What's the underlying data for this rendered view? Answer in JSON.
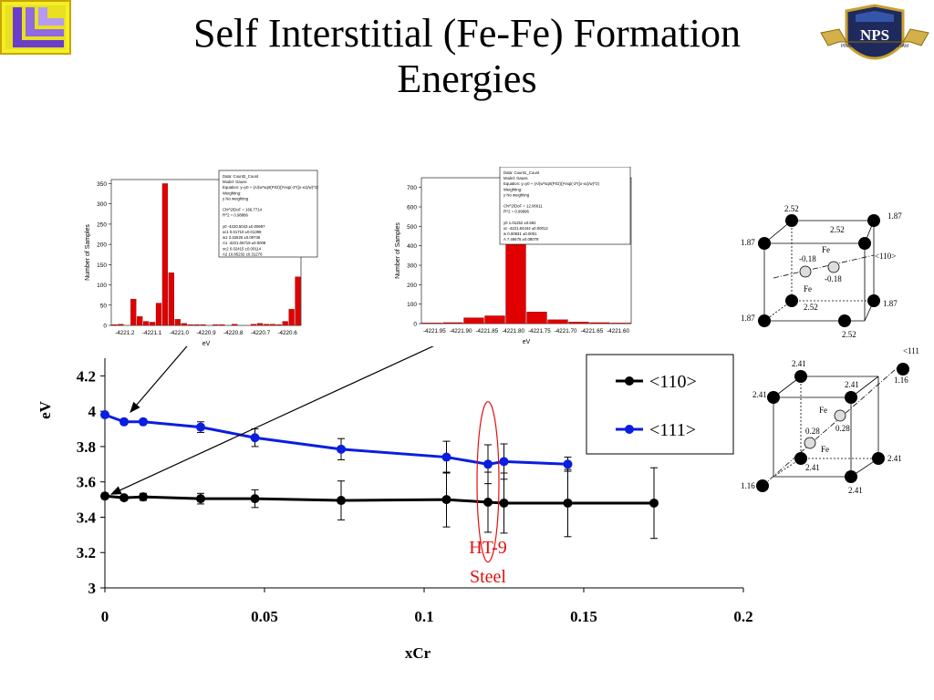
{
  "title_line1": "Self Interstitial (Fe-Fe) Formation",
  "title_line2": "Energies",
  "colors": {
    "s110": "#000000",
    "s111": "#0a1ee0",
    "annotation": "#e01010",
    "bar": "#e00000"
  },
  "logos": {
    "right_text": "NPS",
    "right_motto": "PRAESTANTIA PER SCIENTIAM"
  },
  "annotation": {
    "line1": "HT-9",
    "line2": "Steel"
  },
  "chart_data": {
    "type": "line",
    "xlabel": "xCr",
    "ylabel": "eV",
    "xlim": [
      0,
      0.2
    ],
    "ylim": [
      3,
      4.3
    ],
    "xticks": [
      "0",
      "0.05",
      "0.1",
      "0.15",
      "0.2"
    ],
    "yticks": [
      "3",
      "3.2",
      "3.4",
      "3.6",
      "3.8",
      "4",
      "4.2"
    ],
    "legend_position": "top-right",
    "series": [
      {
        "name": "<110>",
        "color": "#000000",
        "x": [
          0,
          0.006,
          0.012,
          0.03,
          0.047,
          0.074,
          0.107,
          0.12,
          0.125,
          0.145,
          0.172
        ],
        "y": [
          3.52,
          3.51,
          3.515,
          3.505,
          3.505,
          3.495,
          3.5,
          3.485,
          3.48,
          3.48,
          3.48
        ],
        "err": [
          0.015,
          0.012,
          0.02,
          0.03,
          0.05,
          0.11,
          0.155,
          0.17,
          0.17,
          0.19,
          0.2
        ]
      },
      {
        "name": "<111>",
        "color": "#0a1ee0",
        "x": [
          0,
          0.006,
          0.012,
          0.03,
          0.047,
          0.074,
          0.107,
          0.12,
          0.125,
          0.145
        ],
        "y": [
          3.98,
          3.94,
          3.94,
          3.91,
          3.85,
          3.785,
          3.74,
          3.7,
          3.715,
          3.7
        ],
        "err": [
          0.01,
          0.015,
          0.015,
          0.03,
          0.05,
          0.06,
          0.09,
          0.11,
          0.1,
          0.04
        ]
      }
    ],
    "insets": [
      {
        "type": "bar",
        "ylabel": "Number of Samples",
        "xlabel": "eV",
        "yticks": [
          "0",
          "50",
          "100",
          "150",
          "200",
          "250",
          "300",
          "350"
        ],
        "xticks": [
          "-4221.2",
          "-4221.1",
          "-4221.0",
          "-4220.9",
          "-4220.8",
          "-4220.7",
          "-4220.6"
        ],
        "ylim": [
          0,
          360
        ],
        "values": [
          2,
          3,
          0,
          65,
          22,
          10,
          8,
          55,
          350,
          130,
          15,
          5,
          2,
          2,
          2,
          0,
          2,
          2,
          0,
          3,
          0,
          0,
          3,
          5,
          3,
          3,
          2,
          10,
          40,
          120
        ],
        "legend": [
          "Data: Count2_Count",
          "Model: Gauss",
          "Equation: y=y0 + (A/(w*sqrt(PI/2)))*exp(-2*((x-xc)/w)^2)",
          "Weighting:",
          "y       No weighting",
          "",
          "Chi^2/DoF    = 166.7714",
          "R^2   = 0.98886",
          "",
          "y0  -4220.5043  ±0.00697",
          "xc1 0.01710  ±0.01398",
          "w1  3.32625  ±0.09736",
          "A1  -4221.06716  ±0.0008",
          "xc2 0.02415  ±0.00114",
          "A2  10.85232  ±0.31276"
        ]
      },
      {
        "type": "bar",
        "ylabel": "Number of Samples",
        "xlabel": "eV",
        "yticks": [
          "0",
          "100",
          "200",
          "300",
          "400",
          "500",
          "600",
          "700"
        ],
        "xticks": [
          "-4221.95",
          "-4221.90",
          "-4221.85",
          "-4221.80",
          "-4221.75",
          "-4221.70",
          "-4221.65",
          "-4221.60"
        ],
        "ylim": [
          0,
          750
        ],
        "values": [
          3,
          5,
          30,
          40,
          710,
          60,
          20,
          8,
          5,
          3
        ],
        "legend": [
          "Data: Count1_Count",
          "Model: Gauss",
          "Equation: y=y0 + (A/(w*sqrt(PI/2)))*exp(-2*((x-xc)/w)^2)",
          "Weighting:",
          "y       No weighting",
          "",
          "Chi^2/DoF    = 12.06611",
          "R^2   = 0.99996",
          "",
          "y0  1.01252  ±0.592",
          "xc  -4221.84444  ±0.00012",
          "w   0.00831  ±0.0001",
          "A   7.46675  ±0.08079"
        ]
      }
    ]
  },
  "crystal_110": {
    "labels": [
      "2.52",
      "1.87",
      "1.87",
      "2.52",
      "Fe",
      "-0.18",
      "<110>",
      "-0.18",
      "Fe",
      "2.52",
      "1.87",
      "1.87",
      "2.52"
    ]
  },
  "crystal_111": {
    "top_label": "<111>",
    "labels": [
      "2.41",
      "2.41",
      "2.41",
      "1.16",
      "Fe",
      "0.28",
      "0.28",
      "Fe",
      "2.41",
      "2.41",
      "1.16",
      "2.41"
    ]
  }
}
